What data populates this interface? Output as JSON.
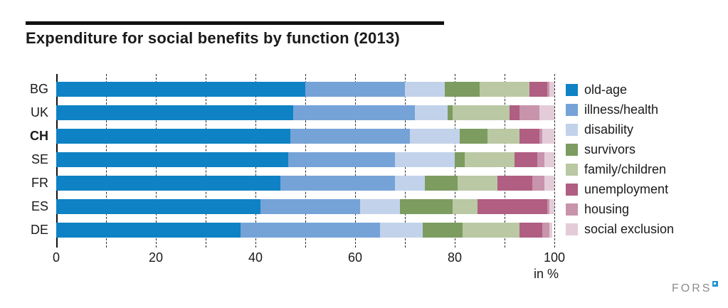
{
  "title": "Expenditure for social benefits by function (2013)",
  "axis": {
    "unit_label": "in %"
  },
  "logo": {
    "text": "FORS"
  },
  "chart_data": {
    "type": "bar",
    "orientation": "horizontal-stacked",
    "title": "Expenditure for social benefits by function (2013)",
    "xlabel": "in %",
    "xlim": [
      0,
      100
    ],
    "x_ticks": [
      0,
      20,
      40,
      60,
      80,
      100
    ],
    "gridlines_every": 10,
    "grid": true,
    "legend_position": "right",
    "bold_category": "CH",
    "categories": [
      "BG",
      "UK",
      "CH",
      "SE",
      "FR",
      "ES",
      "DE"
    ],
    "series": [
      {
        "name": "old-age",
        "color": "#0e82c4",
        "values": [
          50.0,
          47.5,
          47.0,
          46.5,
          45.0,
          41.0,
          37.0
        ]
      },
      {
        "name": "illness/health",
        "color": "#75a3d7",
        "values": [
          20.0,
          24.5,
          24.0,
          21.5,
          23.0,
          20.0,
          28.0
        ]
      },
      {
        "name": "disability",
        "color": "#c2d2ea",
        "values": [
          8.0,
          6.5,
          10.0,
          12.0,
          6.0,
          8.0,
          8.5
        ]
      },
      {
        "name": "survivors",
        "color": "#7d9c60",
        "values": [
          7.0,
          1.0,
          5.5,
          2.0,
          6.5,
          10.5,
          8.0
        ]
      },
      {
        "name": "family/children",
        "color": "#bac8a4",
        "values": [
          10.0,
          11.5,
          6.5,
          10.0,
          8.0,
          5.0,
          11.5
        ]
      },
      {
        "name": "unemployment",
        "color": "#b05e82",
        "values": [
          3.5,
          2.0,
          4.0,
          4.5,
          7.0,
          14.0,
          4.5
        ]
      },
      {
        "name": "housing",
        "color": "#c794ab",
        "values": [
          0.5,
          4.0,
          0.5,
          1.5,
          2.5,
          0.5,
          1.5
        ]
      },
      {
        "name": "social exclusion",
        "color": "#e3ccd8",
        "values": [
          1.0,
          3.0,
          2.5,
          2.0,
          2.0,
          1.0,
          0.5
        ]
      }
    ]
  }
}
